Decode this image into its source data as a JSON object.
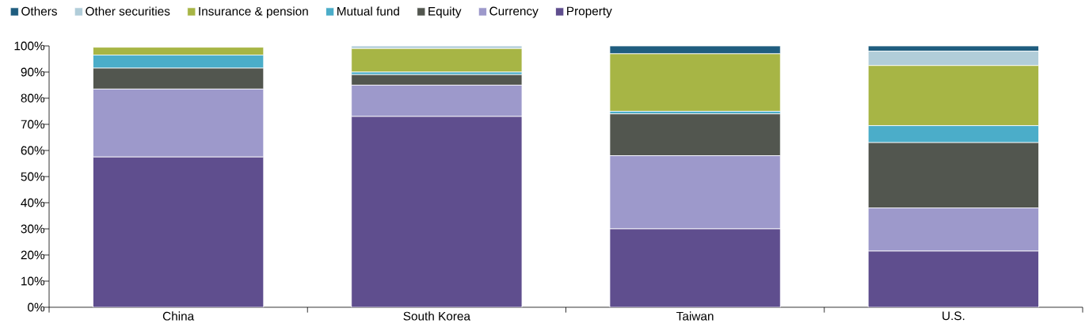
{
  "chart_data": {
    "type": "bar",
    "stacked": true,
    "legend": "top left",
    "grid": false,
    "categories": [
      "China",
      "South Korea",
      "Taiwan",
      "U.S."
    ],
    "ylim": [
      0,
      100
    ],
    "yticks": [
      {
        "value": 0,
        "label": "0%"
      },
      {
        "value": 10,
        "label": "10%"
      },
      {
        "value": 20,
        "label": "20%"
      },
      {
        "value": 30,
        "label": "30%"
      },
      {
        "value": 40,
        "label": "40%"
      },
      {
        "value": 50,
        "label": "50%"
      },
      {
        "value": 60,
        "label": "60%"
      },
      {
        "value": 70,
        "label": "70%"
      },
      {
        "value": 80,
        "label": "80%"
      },
      {
        "value": 90,
        "label": "90%"
      },
      {
        "value": 100,
        "label": "100%"
      }
    ],
    "series": [
      {
        "name": "Property",
        "color": "#5f4e8e",
        "values": [
          57.5,
          73,
          30,
          21.5
        ]
      },
      {
        "name": "Currency",
        "color": "#9d99cb",
        "values": [
          26,
          12,
          28,
          16.5
        ]
      },
      {
        "name": "Equity",
        "color": "#52564f",
        "values": [
          8,
          4,
          16,
          25
        ]
      },
      {
        "name": "Mutual fund",
        "color": "#4badc9",
        "values": [
          5,
          1,
          1,
          6.5
        ]
      },
      {
        "name": "Insurance & pension",
        "color": "#a7b545",
        "values": [
          3,
          9,
          22,
          23
        ]
      },
      {
        "name": "Other securities",
        "color": "#b1cdd9",
        "values": [
          0,
          1,
          0,
          5.5
        ]
      },
      {
        "name": "Others",
        "color": "#1f5d7f",
        "values": [
          0,
          0,
          3,
          2
        ]
      }
    ]
  }
}
